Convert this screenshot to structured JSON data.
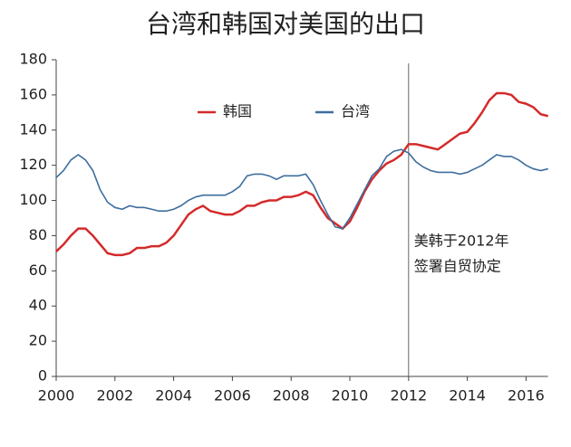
{
  "chart_data": {
    "type": "line",
    "title": "台湾和韩国对美国的出口",
    "x": [
      2000,
      2000.25,
      2000.5,
      2000.75,
      2001,
      2001.25,
      2001.5,
      2001.75,
      2002,
      2002.25,
      2002.5,
      2002.75,
      2003,
      2003.25,
      2003.5,
      2003.75,
      2004,
      2004.25,
      2004.5,
      2004.75,
      2005,
      2005.25,
      2005.5,
      2005.75,
      2006,
      2006.25,
      2006.5,
      2006.75,
      2007,
      2007.25,
      2007.5,
      2007.75,
      2008,
      2008.25,
      2008.5,
      2008.75,
      2009,
      2009.25,
      2009.5,
      2009.75,
      2010,
      2010.25,
      2010.5,
      2010.75,
      2011,
      2011.25,
      2011.5,
      2011.75,
      2012,
      2012.25,
      2012.5,
      2012.75,
      2013,
      2013.25,
      2013.5,
      2013.75,
      2014,
      2014.25,
      2014.5,
      2014.75,
      2015,
      2015.25,
      2015.5,
      2015.75,
      2016,
      2016.25,
      2016.5,
      2016.75
    ],
    "series": [
      {
        "name": "韩国",
        "color": "#d42a2a",
        "values": [
          71,
          75,
          80,
          84,
          84,
          80,
          75,
          70,
          69,
          69,
          70,
          73,
          73,
          74,
          74,
          76,
          80,
          86,
          92,
          95,
          97,
          94,
          93,
          92,
          92,
          94,
          97,
          97,
          99,
          100,
          100,
          102,
          102,
          103,
          105,
          103,
          96,
          90,
          87,
          84,
          88,
          96,
          105,
          112,
          117,
          121,
          123,
          126,
          132,
          132,
          131,
          130,
          129,
          132,
          135,
          138,
          139,
          144,
          150,
          157,
          161,
          161,
          160,
          156,
          155,
          153,
          149,
          148
        ]
      },
      {
        "name": "台湾",
        "color": "#3d6e9e",
        "values": [
          113,
          117,
          123,
          126,
          123,
          117,
          106,
          99,
          96,
          95,
          97,
          96,
          96,
          95,
          94,
          94,
          95,
          97,
          100,
          102,
          103,
          103,
          103,
          103,
          105,
          108,
          114,
          115,
          115,
          114,
          112,
          114,
          114,
          114,
          115,
          109,
          100,
          92,
          85,
          84,
          90,
          98,
          106,
          114,
          118,
          125,
          128,
          129,
          127,
          122,
          119,
          117,
          116,
          116,
          116,
          115,
          116,
          118,
          120,
          123,
          126,
          125,
          125,
          123,
          120,
          118,
          117,
          118
        ]
      }
    ],
    "xlim": [
      2000,
      2016.75
    ],
    "xticks": [
      2000,
      2002,
      2004,
      2006,
      2008,
      2010,
      2012,
      2014,
      2016
    ],
    "ylim": [
      0,
      180
    ],
    "yticks": [
      0,
      20,
      40,
      60,
      80,
      100,
      120,
      140,
      160,
      180
    ],
    "annotation": {
      "x": 2012,
      "lines": [
        "美韩于2012年",
        "签署自贸协定"
      ]
    }
  }
}
